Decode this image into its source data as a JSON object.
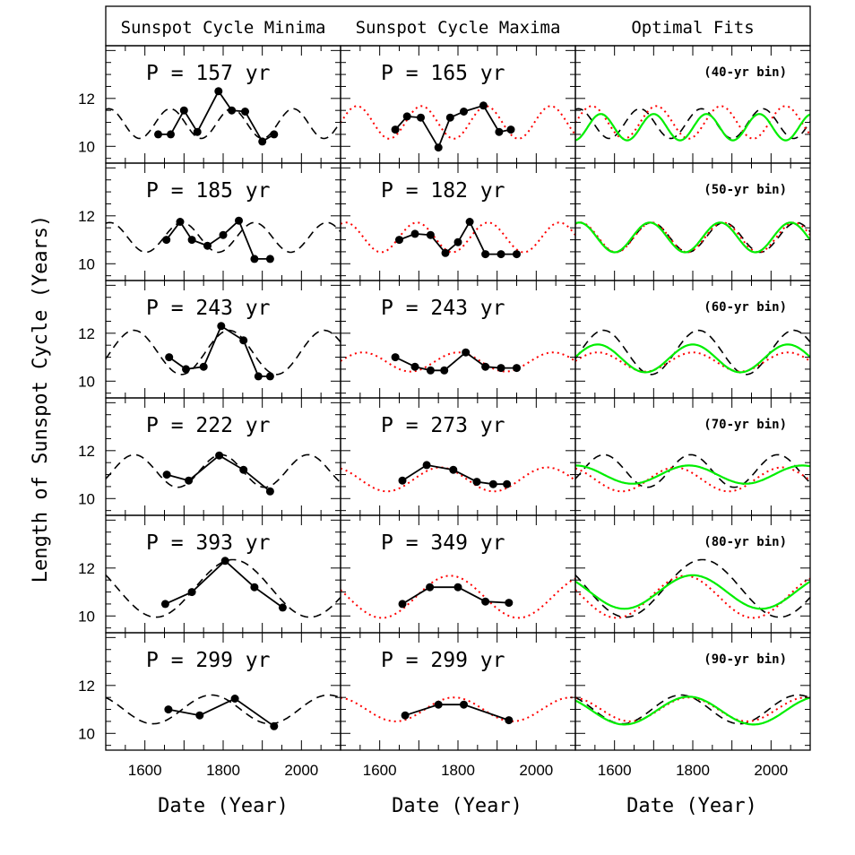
{
  "chart_data": {
    "type": "line",
    "xlabel": "Date (Year)",
    "ylabel": "Length of Sunspot Cycle (Years)",
    "xlim": [
      1500,
      2100
    ],
    "ylim": [
      9.3,
      14.2
    ],
    "x_ticks": [
      1600,
      1800,
      2000
    ],
    "x_tick_labels": [
      "1600",
      "1800",
      "2000"
    ],
    "y_ticks": [
      10,
      12
    ],
    "y_tick_labels": [
      "10",
      "12"
    ],
    "column_titles": [
      "Sunspot Cycle Minima",
      "Sunspot Cycle Maxima",
      "Optimal Fits"
    ],
    "colors": {
      "data": "#000000",
      "minima_fit": "#000000",
      "maxima_fit": "#ff0000",
      "optimal_fit": "#00ee00"
    },
    "rows": [
      {
        "minima": {
          "label": "P = 157 yr",
          "period": 157,
          "fit": {
            "period": 157,
            "mean": 10.95,
            "amp": 0.62,
            "peak": 1665
          },
          "x": [
            1634,
            1666,
            1700,
            1734,
            1788,
            1822,
            1856,
            1900,
            1930
          ],
          "y": [
            10.5,
            10.5,
            11.5,
            10.6,
            12.3,
            11.5,
            11.45,
            10.2,
            10.5
          ]
        },
        "maxima": {
          "label": "P = 165 yr",
          "period": 165,
          "fit": {
            "period": 165,
            "mean": 11.0,
            "amp": 0.68,
            "peak": 1707
          },
          "x": [
            1640,
            1670,
            1705,
            1750,
            1780,
            1815,
            1865,
            1905,
            1935
          ],
          "y": [
            10.7,
            11.25,
            11.2,
            9.95,
            11.2,
            11.45,
            11.7,
            10.6,
            10.7
          ]
        },
        "bin_label": "(40-yr bin)",
        "optimal": {
          "period": 135,
          "mean": 10.8,
          "amp": 0.55,
          "peak": 1565
        }
      },
      {
        "minima": {
          "label": "P = 185 yr",
          "period": 185,
          "fit": {
            "period": 185,
            "mean": 11.1,
            "amp": 0.62,
            "peak": 1695
          },
          "x": [
            1655,
            1690,
            1720,
            1760,
            1800,
            1840,
            1880,
            1920
          ],
          "y": [
            11.0,
            11.75,
            11.0,
            10.75,
            11.2,
            11.8,
            10.2,
            10.2
          ]
        },
        "maxima": {
          "label": "P = 182 yr",
          "period": 182,
          "fit": {
            "period": 182,
            "mean": 11.1,
            "amp": 0.62,
            "peak": 1695
          },
          "x": [
            1650,
            1690,
            1730,
            1768,
            1800,
            1830,
            1870,
            1910,
            1950
          ],
          "y": [
            11.0,
            11.25,
            11.2,
            10.45,
            10.9,
            11.75,
            10.4,
            10.4,
            10.4
          ]
        },
        "bin_label": "(50-yr bin)",
        "optimal": {
          "period": 180,
          "mean": 11.1,
          "amp": 0.62,
          "peak": 1690
        }
      },
      {
        "minima": {
          "label": "P = 243 yr",
          "period": 243,
          "fit": {
            "period": 243,
            "mean": 11.2,
            "amp": 0.92,
            "peak": 1815
          },
          "x": [
            1662,
            1705,
            1750,
            1795,
            1852,
            1890,
            1920
          ],
          "y": [
            11.0,
            10.5,
            10.6,
            12.3,
            11.7,
            10.2,
            10.2
          ]
        },
        "maxima": {
          "label": "P = 243 yr",
          "period": 243,
          "fit": {
            "period": 243,
            "mean": 10.8,
            "amp": 0.4,
            "peak": 1800
          },
          "x": [
            1640,
            1690,
            1730,
            1765,
            1820,
            1870,
            1910,
            1950
          ],
          "y": [
            11.0,
            10.6,
            10.45,
            10.45,
            11.2,
            10.6,
            10.55,
            10.55
          ]
        },
        "bin_label": "(60-yr bin)",
        "optimal": {
          "period": 243,
          "mean": 10.95,
          "amp": 0.58,
          "peak": 1800
        }
      },
      {
        "minima": {
          "label": "P = 222 yr",
          "period": 222,
          "fit": {
            "period": 222,
            "mean": 11.15,
            "amp": 0.68,
            "peak": 1795
          },
          "x": [
            1656,
            1712,
            1790,
            1852,
            1920
          ],
          "y": [
            11.0,
            10.75,
            11.8,
            11.2,
            10.3
          ]
        },
        "maxima": {
          "label": "P = 273 yr",
          "period": 273,
          "fit": {
            "period": 273,
            "mean": 10.8,
            "amp": 0.5,
            "peak": 1755
          },
          "x": [
            1658,
            1720,
            1788,
            1848,
            1890,
            1925
          ],
          "y": [
            10.75,
            11.4,
            11.2,
            10.7,
            10.6,
            10.6
          ]
        },
        "bin_label": "(70-yr bin)",
        "optimal": {
          "period": 290,
          "mean": 11.0,
          "amp": 0.38,
          "peak": 1790
        }
      },
      {
        "minima": {
          "label": "P = 393 yr",
          "period": 393,
          "fit": {
            "period": 393,
            "mean": 11.15,
            "amp": 1.2,
            "peak": 1825
          },
          "x": [
            1652,
            1720,
            1805,
            1880,
            1952
          ],
          "y": [
            10.5,
            11.0,
            12.3,
            11.2,
            10.35
          ]
        },
        "maxima": {
          "label": "P = 349 yr",
          "period": 349,
          "fit": {
            "period": 349,
            "mean": 10.8,
            "amp": 0.88,
            "peak": 1780
          },
          "x": [
            1658,
            1728,
            1800,
            1870,
            1930
          ],
          "y": [
            10.5,
            11.2,
            11.2,
            10.6,
            10.55
          ]
        },
        "bin_label": "(80-yr bin)",
        "optimal": {
          "period": 350,
          "mean": 11.0,
          "amp": 0.7,
          "peak": 1800
        }
      },
      {
        "minima": {
          "label": "P = 299 yr",
          "period": 299,
          "fit": {
            "period": 299,
            "mean": 11.0,
            "amp": 0.6,
            "peak": 1770
          },
          "x": [
            1660,
            1740,
            1830,
            1930
          ],
          "y": [
            11.0,
            10.75,
            11.45,
            10.3
          ]
        },
        "maxima": {
          "label": "P = 299 yr",
          "period": 299,
          "fit": {
            "period": 299,
            "mean": 11.0,
            "amp": 0.5,
            "peak": 1790
          },
          "x": [
            1665,
            1750,
            1815,
            1930
          ],
          "y": [
            10.75,
            11.2,
            11.2,
            10.55
          ]
        },
        "bin_label": "(90-yr bin)",
        "optimal": {
          "period": 330,
          "mean": 10.95,
          "amp": 0.58,
          "peak": 1790
        }
      }
    ]
  }
}
